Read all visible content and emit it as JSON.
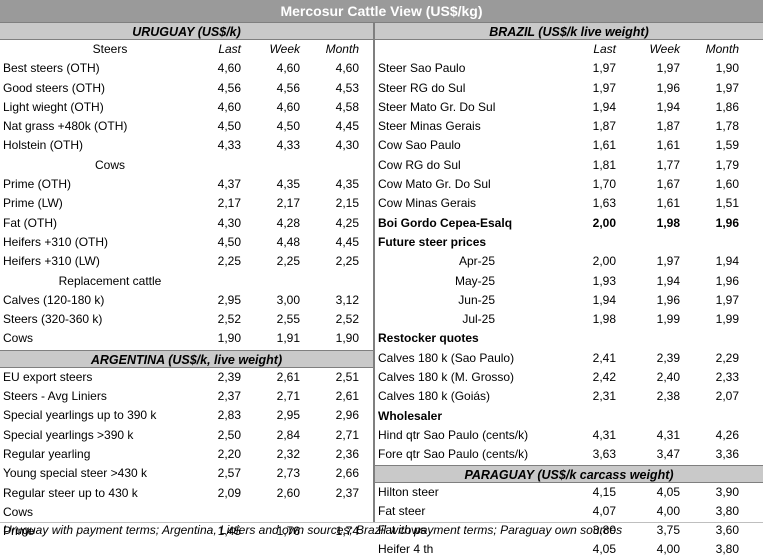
{
  "title": "Mercosur Cattle View (US$/kg)",
  "uruguay": {
    "heading": "URUGUAY (US$/k)",
    "col_label": "Steers",
    "cols": [
      "Last",
      "Week",
      "Month"
    ],
    "steers": [
      {
        "label": "Best steers (OTH)",
        "last": "4,60",
        "week": "4,60",
        "month": "4,60"
      },
      {
        "label": "Good steers (OTH)",
        "last": "4,56",
        "week": "4,56",
        "month": "4,53"
      },
      {
        "label": "Light wieght (OTH)",
        "last": "4,60",
        "week": "4,60",
        "month": "4,58"
      },
      {
        "label": "Nat grass +480k (OTH)",
        "last": "4,50",
        "week": "4,50",
        "month": "4,45"
      },
      {
        "label": "Holstein (OTH)",
        "last": "4,33",
        "week": "4,33",
        "month": "4,30"
      }
    ],
    "cows_label": "Cows",
    "cows": [
      {
        "label": "Prime (OTH)",
        "last": "4,37",
        "week": "4,35",
        "month": "4,35"
      },
      {
        "label": "Prime (LW)",
        "last": "2,17",
        "week": "2,17",
        "month": "2,15"
      },
      {
        "label": "Fat (OTH)",
        "last": "4,30",
        "week": "4,28",
        "month": "4,25"
      },
      {
        "label": "Heifers +310 (OTH)",
        "last": "4,50",
        "week": "4,48",
        "month": "4,45"
      },
      {
        "label": "Heifers +310 (LW)",
        "last": "2,25",
        "week": "2,25",
        "month": "2,25"
      }
    ],
    "replacement_label": "Replacement cattle",
    "replacement": [
      {
        "label": "Calves (120-180 k)",
        "last": "2,95",
        "week": "3,00",
        "month": "3,12"
      },
      {
        "label": "Steers (320-360 k)",
        "last": "2,52",
        "week": "2,55",
        "month": "2,52"
      },
      {
        "label": "Cows",
        "last": "1,90",
        "week": "1,91",
        "month": "1,90"
      }
    ]
  },
  "argentina": {
    "heading": "ARGENTINA (US$/k, live weight)",
    "rows": [
      {
        "label": "EU export steers",
        "last": "2,39",
        "week": "2,61",
        "month": "2,51"
      },
      {
        "label": "Steers - Avg Liniers",
        "last": "2,37",
        "week": "2,71",
        "month": "2,61"
      },
      {
        "label": "Special yearlings up to 390 k",
        "last": "2,83",
        "week": "2,95",
        "month": "2,96"
      },
      {
        "label": "Special yearlings >390 k",
        "last": "2,50",
        "week": "2,84",
        "month": "2,71"
      },
      {
        "label": "Regular yearling",
        "last": "2,20",
        "week": "2,32",
        "month": "2,36"
      },
      {
        "label": "Young special steer >430 k",
        "last": "2,57",
        "week": "2,73",
        "month": "2,66"
      },
      {
        "label": "Regular steer up to 430 k",
        "last": "2,09",
        "week": "2,60",
        "month": "2,37"
      }
    ],
    "cows_label": "Cows",
    "prime": {
      "label": "Prime",
      "last": "1,45",
      "week": "1,76",
      "month": "1,74"
    }
  },
  "brazil": {
    "heading": "BRAZIL  (US$/k live weight)",
    "cols": [
      "Last",
      "Week",
      "Month"
    ],
    "rows": [
      {
        "label": "Steer Sao Paulo",
        "last": "1,97",
        "week": "1,97",
        "month": "1,90"
      },
      {
        "label": "Steer RG do Sul",
        "last": "1,97",
        "week": "1,96",
        "month": "1,97"
      },
      {
        "label": "Steer Mato Gr. Do Sul",
        "last": "1,94",
        "week": "1,94",
        "month": "1,86"
      },
      {
        "label": "Steer Minas Gerais",
        "last": "1,87",
        "week": "1,87",
        "month": "1,78"
      },
      {
        "label": "Cow Sao Paulo",
        "last": "1,61",
        "week": "1,61",
        "month": "1,59"
      },
      {
        "label": "Cow RG do Sul",
        "last": "1,81",
        "week": "1,77",
        "month": "1,79"
      },
      {
        "label": "Cow Mato Gr. Do Sul",
        "last": "1,70",
        "week": "1,67",
        "month": "1,60"
      },
      {
        "label": "Cow Minas Gerais",
        "last": "1,63",
        "week": "1,61",
        "month": "1,51"
      }
    ],
    "boi": {
      "label": "Boi Gordo Cepea-Esalq",
      "last": "2,00",
      "week": "1,98",
      "month": "1,96"
    },
    "future_label": "Future steer prices",
    "future": [
      {
        "label": "Apr-25",
        "last": "2,00",
        "week": "1,97",
        "month": "1,94"
      },
      {
        "label": "May-25",
        "last": "1,93",
        "week": "1,94",
        "month": "1,96"
      },
      {
        "label": "Jun-25",
        "last": "1,94",
        "week": "1,96",
        "month": "1,97"
      },
      {
        "label": "Jul-25",
        "last": "1,98",
        "week": "1,99",
        "month": "1,99"
      }
    ],
    "restocker_label": "Restocker quotes",
    "restocker": [
      {
        "label": "Calves 180 k (Sao Paulo)",
        "last": "2,41",
        "week": "2,39",
        "month": "2,29"
      },
      {
        "label": "Calves 180 k (M. Grosso)",
        "last": "2,42",
        "week": "2,40",
        "month": "2,33"
      },
      {
        "label": "Calves 180 k (Goiás)",
        "last": "2,31",
        "week": "2,38",
        "month": "2,07"
      }
    ],
    "wholesaler_label": "Wholesaler",
    "wholesaler": [
      {
        "label": "Hind qtr Sao Paulo (cents/k)",
        "last": "4,31",
        "week": "4,31",
        "month": "4,26"
      },
      {
        "label": "Fore qtr Sao Paulo (cents/k)",
        "last": "3,63",
        "week": "3,47",
        "month": "3,36"
      }
    ]
  },
  "paraguay": {
    "heading": "PARAGUAY  (US$/k carcass weight)",
    "rows": [
      {
        "label": "Hilton steer",
        "last": "4,15",
        "week": "4,05",
        "month": "3,90"
      },
      {
        "label": "Fat steer",
        "last": "4,07",
        "week": "4,00",
        "month": "3,80"
      },
      {
        "label": "Fat cows",
        "last": "3,80",
        "week": "3,75",
        "month": "3,60"
      },
      {
        "label": "Heifer 4 th",
        "last": "4,05",
        "week": "4,00",
        "month": "3,80"
      }
    ]
  },
  "footer": "Uruguay with payment terms; Argentina, Liniers and own sources; Brazil with payment terms; Paraguay own sources"
}
